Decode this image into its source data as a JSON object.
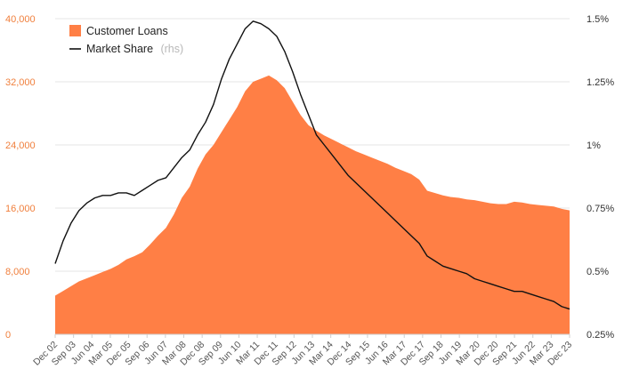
{
  "chart_data": {
    "type": "area",
    "title": "",
    "xlabel": "",
    "ylabel": "",
    "x_tick_labels": [
      "Dec 02",
      "Sep 03",
      "Jun 04",
      "Mar 05",
      "Dec 05",
      "Sep 06",
      "Jun 07",
      "Mar 08",
      "Dec 08",
      "Sep 09",
      "Jun 10",
      "Mar 11",
      "Dec 11",
      "Sep 12",
      "Jun 13",
      "Mar 14",
      "Dec 14",
      "Sep 15",
      "Jun 16",
      "Mar 17",
      "Dec 17",
      "Sep 18",
      "Jun 19",
      "Mar 20",
      "Dec 20",
      "Sep 21",
      "Jun 22",
      "Mar 23",
      "Dec 23"
    ],
    "y_left": {
      "ylim": [
        0,
        40000
      ],
      "ticks": [
        0,
        8000,
        16000,
        24000,
        32000,
        40000
      ],
      "tick_labels": [
        "0",
        "8,000",
        "16,000",
        "24,000",
        "32,000",
        "40,000"
      ]
    },
    "y_right": {
      "ylim": [
        0.25,
        1.5
      ],
      "ticks": [
        0.25,
        0.5,
        0.75,
        1.0,
        1.25,
        1.5
      ],
      "tick_labels": [
        "0.25%",
        "0.5%",
        "0.75%",
        "1%",
        "1.25%",
        "1.5%"
      ]
    },
    "grid": true,
    "legend_position": "top-left",
    "series": [
      {
        "name": "Customer Loans",
        "type": "area",
        "axis": "left",
        "color": "#ff7f45",
        "values": [
          4900,
          5500,
          6100,
          6700,
          7100,
          7500,
          7900,
          8300,
          8800,
          9500,
          9900,
          10400,
          11400,
          12500,
          13500,
          15200,
          17300,
          18700,
          21000,
          22800,
          24000,
          25600,
          27200,
          28800,
          30800,
          32000,
          32400,
          32800,
          32200,
          31200,
          29500,
          27800,
          26500,
          25800,
          25200,
          24700,
          24200,
          23700,
          23200,
          22800,
          22400,
          22000,
          21600,
          21100,
          20700,
          20300,
          19600,
          18200,
          17900,
          17600,
          17400,
          17300,
          17100,
          17000,
          16800,
          16600,
          16500,
          16500,
          16800,
          16700,
          16500,
          16400,
          16300,
          16200,
          15900,
          15700
        ]
      },
      {
        "name": "Market Share",
        "axis_note": "(rhs)",
        "type": "line",
        "axis": "right",
        "color": "#111111",
        "values": [
          0.53,
          0.62,
          0.69,
          0.74,
          0.77,
          0.79,
          0.8,
          0.8,
          0.81,
          0.81,
          0.8,
          0.82,
          0.84,
          0.86,
          0.87,
          0.91,
          0.95,
          0.98,
          1.04,
          1.09,
          1.16,
          1.26,
          1.34,
          1.4,
          1.46,
          1.49,
          1.48,
          1.46,
          1.43,
          1.37,
          1.29,
          1.2,
          1.12,
          1.04,
          1.0,
          0.96,
          0.92,
          0.88,
          0.85,
          0.82,
          0.79,
          0.76,
          0.73,
          0.7,
          0.67,
          0.64,
          0.61,
          0.56,
          0.54,
          0.52,
          0.51,
          0.5,
          0.49,
          0.47,
          0.46,
          0.45,
          0.44,
          0.43,
          0.42,
          0.42,
          0.41,
          0.4,
          0.39,
          0.38,
          0.36,
          0.35
        ]
      }
    ]
  }
}
